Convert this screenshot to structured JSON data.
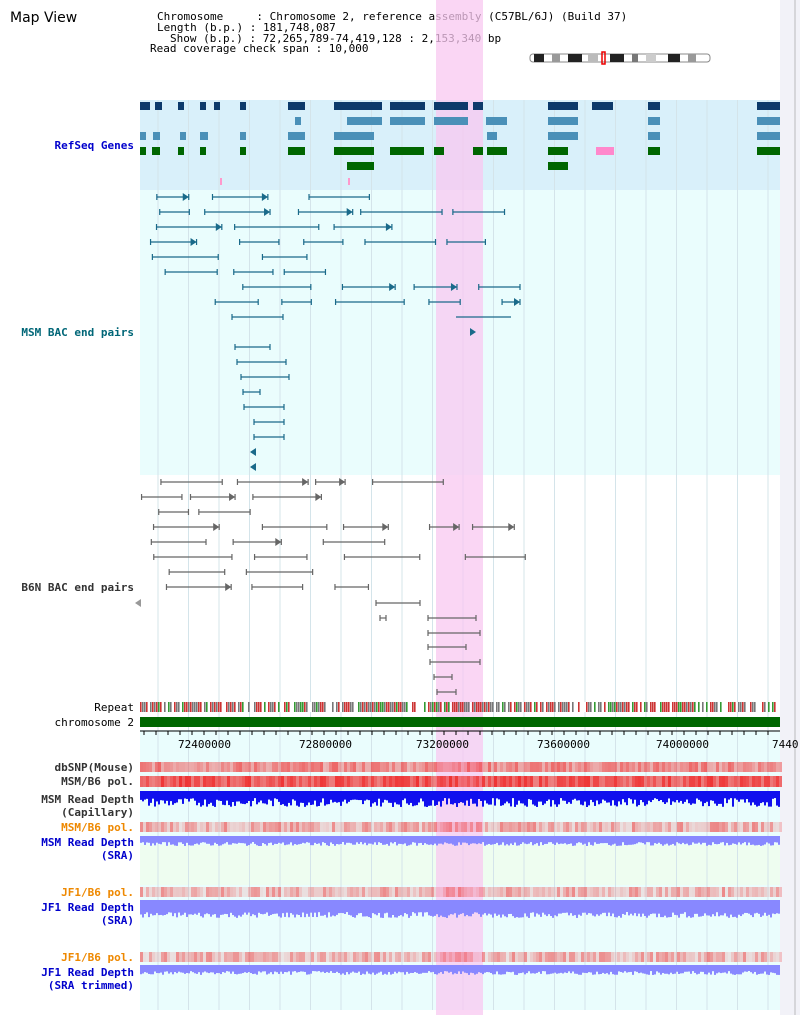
{
  "header": {
    "title": "Map View",
    "chromosome_label": "Chromosome     : Chromosome 2, reference assembly (C57BL/6J) (Build 37)",
    "length_label": "Length (b.p.) : 181,748,087",
    "show_label": "Show (b.p.) : 72,265,789-74,419,128 : 2,153,340 bp",
    "read_cov_label": "Read coverage check span : 10,000"
  },
  "tracks": {
    "refseq": "RefSeq Genes",
    "msm_bac": "MSM BAC end pairs",
    "b6n_bac": "B6N BAC end pairs",
    "repeat": "Repeat",
    "chromosome": "chromosome 2",
    "dbsnp": "dbSNP(Mouse)",
    "msm_b6_pol": "MSM/B6 pol.",
    "msm_read_depth_cap_1": "MSM Read Depth",
    "msm_read_depth_cap_2": "(Capillary)",
    "msm_b6_pol_sra": "MSM/B6 pol.",
    "msm_read_depth_sra_1": "MSM Read Depth",
    "msm_read_depth_sra_2": "(SRA)",
    "jf1_b6_pol": "JF1/B6 pol.",
    "jf1_read_depth_1": "JF1 Read Depth",
    "jf1_read_depth_2": "(SRA)",
    "jf1_b6_pol_trim": "JF1/B6 pol.",
    "jf1_read_depth_trim_1": "JF1 Read Depth",
    "jf1_read_depth_trim_2": "(SRA trimmed)"
  },
  "axis": {
    "ticks": [
      "72400000",
      "72800000",
      "73200000",
      "73600000",
      "74000000",
      "7440"
    ]
  },
  "colors": {
    "refseq_bg": "#d9f0fa",
    "panel_bg": "#eafdfd",
    "b6n_bg": "#ffffff",
    "highlight": "#f8c8f0",
    "gene_dark": "#0d3a6b",
    "gene_mid": "#4a90b8",
    "gene_green": "#006600",
    "gene_pink": "#ff88cc",
    "msm_line": "#1a6a8a",
    "b6n_line": "#666666",
    "chrom_green": "#006600",
    "label_blue": "#0000cc",
    "label_teal": "#006677",
    "label_orange": "#ee8800",
    "label_grey": "#333333",
    "depth_blue": "#1010ee",
    "depth_lightblue": "#8888ff",
    "pol_red": "#ee3333"
  }
}
